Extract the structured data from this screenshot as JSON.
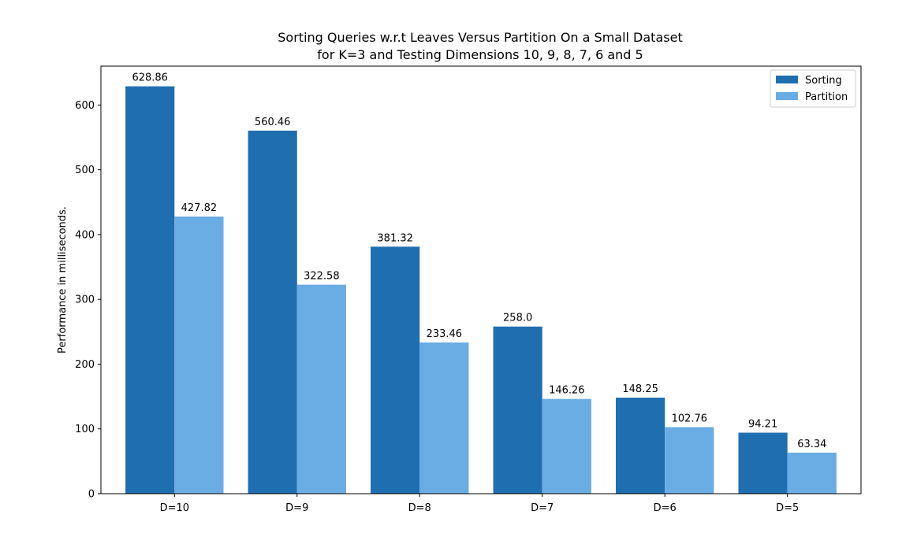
{
  "chart_data": {
    "type": "bar",
    "title": [
      "Sorting Queries w.r.t Leaves Versus Partition On a Small Dataset",
      "for K=3 and Testing Dimensions 10, 9, 8, 7, 6 and 5"
    ],
    "xlabel": "",
    "ylabel": "Performance in milliseconds.",
    "categories": [
      "D=10",
      "D=9",
      "D=8",
      "D=7",
      "D=6",
      "D=5"
    ],
    "series": [
      {
        "name": "Sorting",
        "color": "#1f6eb0",
        "values": [
          628.86,
          560.46,
          381.32,
          258.0,
          148.25,
          94.21
        ],
        "labels": [
          "628.86",
          "560.46",
          "381.32",
          "258.0",
          "148.25",
          "94.21"
        ]
      },
      {
        "name": "Partition",
        "color": "#6aace4",
        "values": [
          427.82,
          322.58,
          233.46,
          146.26,
          102.76,
          63.34
        ],
        "labels": [
          "427.82",
          "322.58",
          "233.46",
          "146.26",
          "102.76",
          "63.34"
        ]
      }
    ],
    "ylim": [
      0,
      660
    ],
    "yticks": [
      "0",
      "100",
      "200",
      "300",
      "400",
      "500",
      "600"
    ],
    "grid": false,
    "legend_position": "top-right"
  }
}
